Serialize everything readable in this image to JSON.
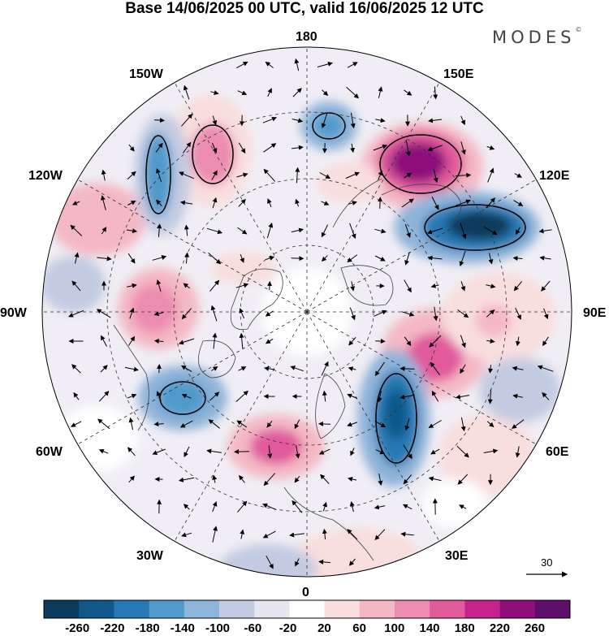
{
  "header": {
    "title": "Base 14/06/2025 00 UTC, valid 16/06/2025 12 UTC",
    "logo_text": "MODES",
    "logo_mark": "©"
  },
  "map": {
    "projection": "north-polar-stereographic",
    "longitude_labels": {
      "lon_0": "0",
      "lon_30e": "30E",
      "lon_60e": "60E",
      "lon_90e": "90E",
      "lon_120e": "120E",
      "lon_150e": "150E",
      "lon_180": "180",
      "lon_150w": "150W",
      "lon_120w": "120W",
      "lon_90w": "90W",
      "lon_60w": "60W",
      "lon_30w": "30W"
    },
    "vector_reference": {
      "label": "30"
    }
  },
  "colorbar": {
    "labels": [
      "-260",
      "-220",
      "-180",
      "-140",
      "-100",
      "-60",
      "-20",
      "20",
      "60",
      "100",
      "140",
      "180",
      "220",
      "260"
    ],
    "colors": [
      "#0b3a5c",
      "#10588a",
      "#2679b4",
      "#4f9acb",
      "#8fb4d9",
      "#c3cbe2",
      "#e6e6f0",
      "#ffffff",
      "#f9dede",
      "#f4b8c4",
      "#ec8cb0",
      "#e05a9c",
      "#c5238a",
      "#8e0e7a",
      "#5e0f6b"
    ]
  }
}
